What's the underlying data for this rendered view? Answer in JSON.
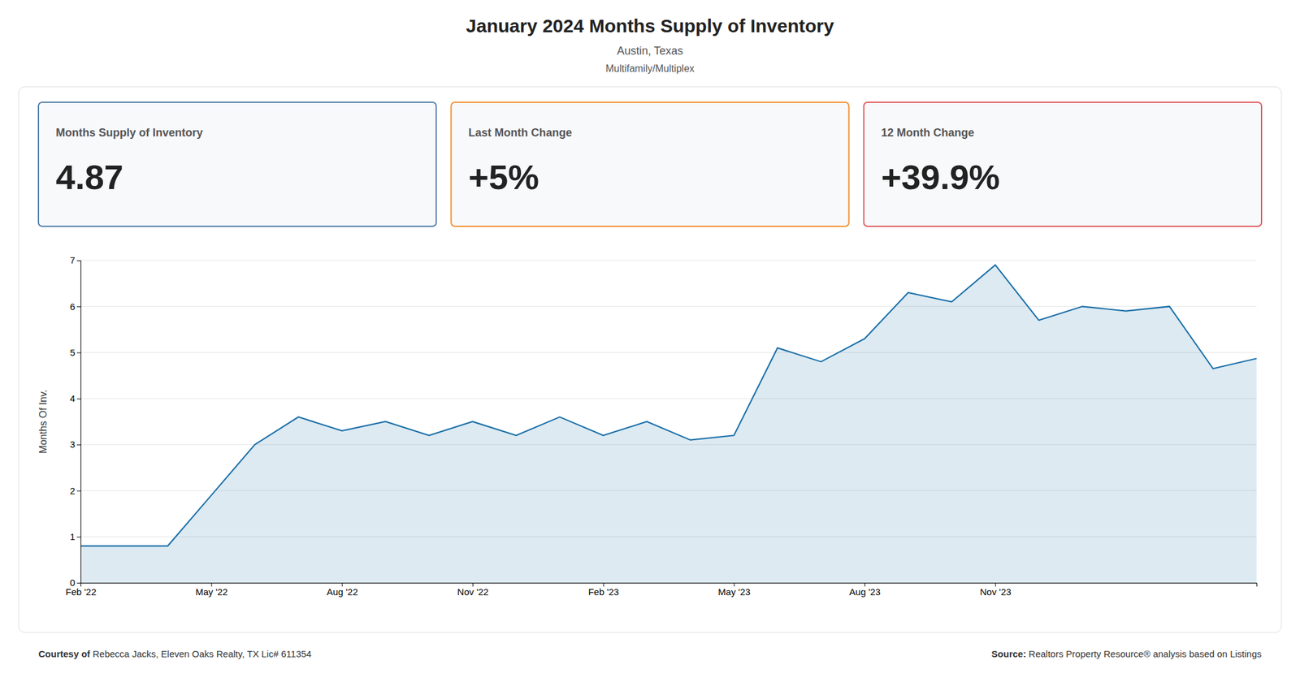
{
  "chart_data": {
    "type": "line",
    "title": "January 2024 Months Supply of Inventory",
    "subtitle": [
      "Austin, Texas",
      "Multifamily/Multiplex"
    ],
    "annotations": [
      {
        "label": "Months Supply of Inventory",
        "text": "4.87"
      },
      {
        "label": "Last Month Change",
        "text": "+5%"
      },
      {
        "label": "12 Month Change",
        "text": "+39.9%"
      }
    ],
    "footer": [
      {
        "bold": "Courtesy of",
        "text": " Rebecca Jacks, Eleven Oaks Realty, TX Lic# 611354"
      },
      {
        "bold": "Source:",
        "text": " Realtors Property Resource® analysis based on Listings"
      }
    ],
    "categories": [
      "Feb '22",
      null,
      null,
      "May '22",
      null,
      null,
      "Aug '22",
      null,
      null,
      "Nov '22",
      null,
      null,
      "Feb '23",
      null,
      null,
      "May '23",
      null,
      null,
      "Aug '23",
      null,
      null,
      "Nov '23",
      null,
      null,
      null,
      null,
      null,
      null
    ],
    "values": [
      0.8,
      0.8,
      0.8,
      1.9,
      3.0,
      3.6,
      3.3,
      3.5,
      3.2,
      3.5,
      3.2,
      3.6,
      3.2,
      3.5,
      3.1,
      3.2,
      5.1,
      4.8,
      5.3,
      6.3,
      6.1,
      6.9,
      5.7,
      6.0,
      5.9,
      6.0,
      4.65,
      4.87
    ],
    "color": "#1a6fa8",
    "ylabel": "Months Of Inv.",
    "ylim": [
      0,
      7
    ],
    "yticks": [
      0,
      1,
      2,
      3,
      4,
      5,
      6,
      7
    ],
    "grid": true
  }
}
